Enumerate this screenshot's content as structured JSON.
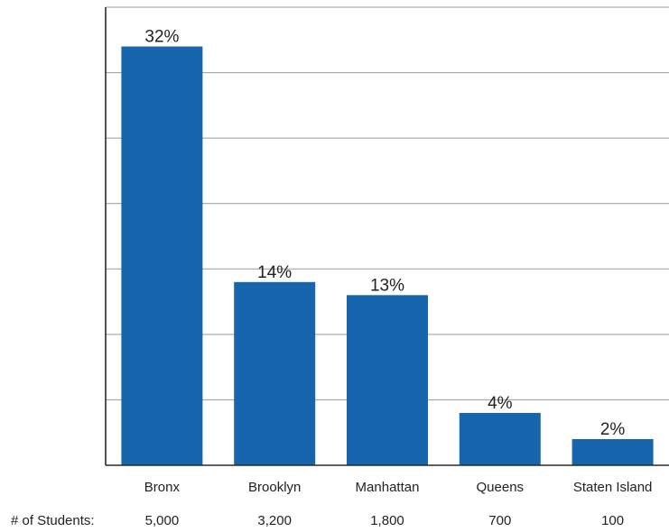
{
  "chart_data": {
    "type": "bar",
    "categories": [
      "Bronx",
      "Brooklyn",
      "Manhattan",
      "Queens",
      "Staten Island"
    ],
    "values": [
      32,
      14,
      13,
      4,
      2
    ],
    "value_labels": [
      "32%",
      "14%",
      "13%",
      "4%",
      "2%"
    ],
    "title": "",
    "xlabel": "",
    "ylabel": "",
    "ylim": [
      0,
      35
    ],
    "grid": true,
    "bar_color": "#1766ad",
    "student_counts_title": "# of Students:",
    "student_counts": [
      "5,000",
      "3,200",
      "1,800",
      "700",
      "100"
    ]
  }
}
